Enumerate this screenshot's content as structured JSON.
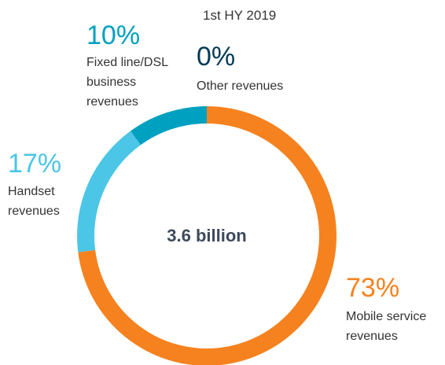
{
  "chart_data": {
    "type": "donut",
    "title": "1st HY 2019",
    "center_label": "3.6 billion",
    "categories": [
      "Mobile service revenues",
      "Handset revenues",
      "Fixed line/DSL business revenues",
      "Other revenues"
    ],
    "values": [
      73,
      17,
      10,
      0
    ],
    "value_labels": [
      "73%",
      "17%",
      "10%",
      "0%"
    ],
    "colors": [
      "#f5821f",
      "#4bc6e6",
      "#00a0c0",
      "#003a55"
    ]
  }
}
